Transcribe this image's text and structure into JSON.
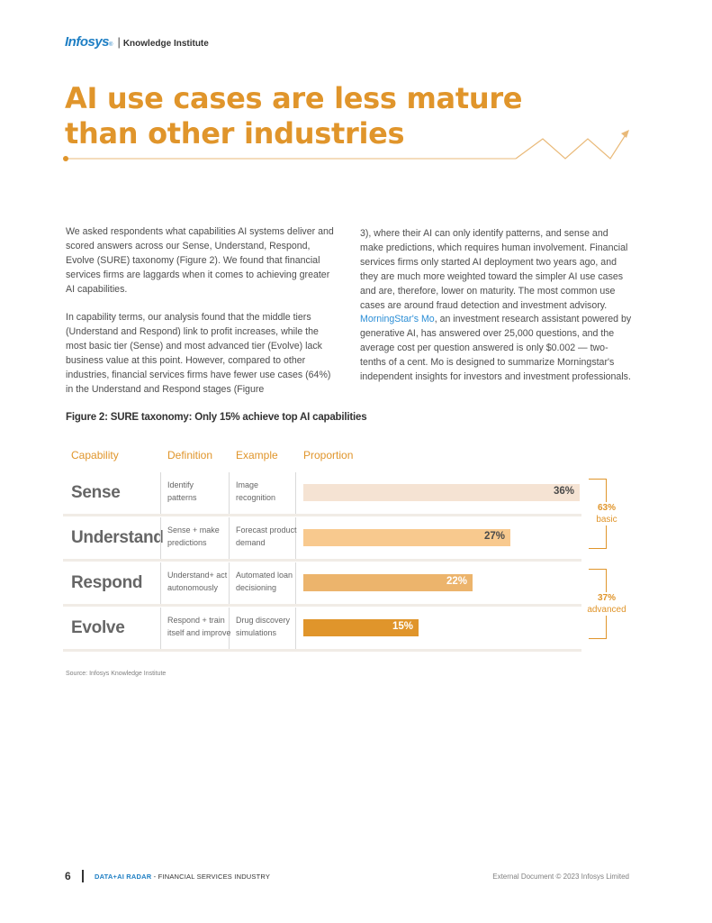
{
  "header": {
    "brand": "Infosys",
    "registered": "®",
    "separator": "|",
    "unit": "Knowledge Institute"
  },
  "title": {
    "line1": "AI use cases are less mature",
    "line2": "than other industries"
  },
  "body": {
    "left": [
      "We asked respondents what capabilities AI systems deliver and scored answers across our Sense, Understand, Respond, Evolve (SURE) taxonomy (Figure 2). We found that financial services firms are laggards when it comes to achieving greater AI capabilities.",
      "In capability terms, our analysis found that the middle tiers (Understand and Respond) link to profit increases, while the most basic tier (Sense) and most advanced tier (Evolve) lack business value at this point. However, compared to other industries, financial services firms have fewer use cases (64%) in the Understand and Respond stages (Figure"
    ],
    "right_before_link": "3), where their AI can only identify patterns, and sense and make predictions, which requires human involvement. Financial services firms only started AI deployment two years ago, and they are much more weighted toward the simpler AI use cases and are, therefore, lower on maturity. The most common use cases are around fraud detection and investment advisory. ",
    "right_link": "MorningStar's Mo",
    "right_after_link": ", an investment research assistant powered by generative AI, has answered over 25,000 questions, and the average cost per question answered is only $0.002 — two-tenths of a cent. Mo is designed to summarize Morningstar's independent insights for investors and investment professionals."
  },
  "figure": {
    "title": "Figure 2: SURE taxonomy: Only 15% achieve top AI capabilities",
    "headers": {
      "capability": "Capability",
      "definition": "Definition",
      "example": "Example",
      "proportion": "Proportion"
    },
    "source": "Source: Infosys Knowledge Institute"
  },
  "chart_data": {
    "type": "bar",
    "orientation": "horizontal",
    "title": "Figure 2: SURE taxonomy: Only 15% achieve top AI capabilities",
    "categories": [
      "Sense",
      "Understand",
      "Respond",
      "Evolve"
    ],
    "values": [
      36,
      27,
      22,
      15
    ],
    "labels": [
      "36%",
      "27%",
      "22%",
      "15%"
    ],
    "unit": "%",
    "xlim": [
      0,
      40
    ],
    "definitions": [
      [
        "Identify",
        "patterns"
      ],
      [
        "Sense + make",
        "predictions"
      ],
      [
        "Understand+ act",
        "autonomously"
      ],
      [
        "Respond + train",
        "itself and improve"
      ]
    ],
    "examples": [
      [
        "Image",
        "recognition"
      ],
      [
        "Forecast product",
        "demand"
      ],
      [
        "Automated loan",
        "decisioning"
      ],
      [
        "Drug discovery",
        "simulations"
      ]
    ],
    "bar_colors": [
      "#f5e3d3",
      "#f8c98e",
      "#ecb46c",
      "#e0952b"
    ],
    "label_colors": [
      "#4a4a4a",
      "#4a4a4a",
      "#ffffff",
      "#ffffff"
    ],
    "groups": [
      {
        "value": "63%",
        "label": "basic"
      },
      {
        "value": "37%",
        "label": "advanced"
      }
    ]
  },
  "footer": {
    "page_number": "6",
    "series_accent": "DATA+AI RADAR",
    "series_rest": " - FINANCIAL SERVICES INDUSTRY",
    "copyright": "External Document © 2023 Infosys Limited"
  },
  "colors": {
    "accent": "#e0952b",
    "brand": "#1f7fc4",
    "link": "#2b8ed6"
  }
}
